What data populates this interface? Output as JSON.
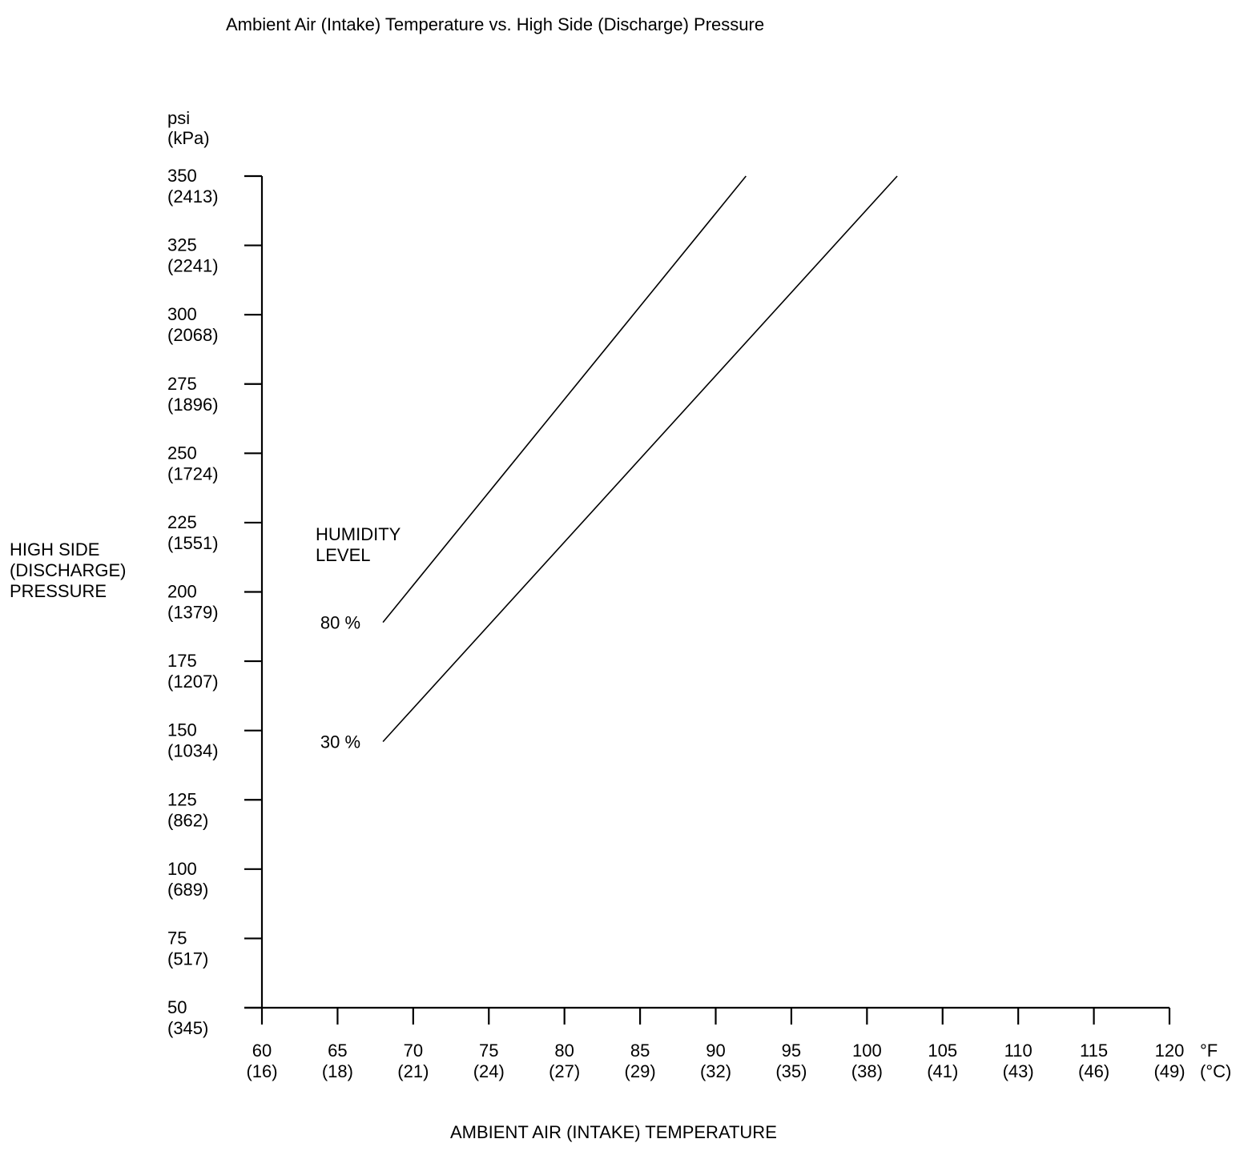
{
  "chart_data": {
    "type": "line",
    "title": "Ambient Air (Intake) Temperature vs. High Side (Discharge) Pressure",
    "xlabel": "AMBIENT AIR (INTAKE) TEMPERATURE",
    "ylabel_lines": [
      "HIGH SIDE",
      "(DISCHARGE)",
      "PRESSURE"
    ],
    "y_unit_lines": [
      "psi",
      "(kPa)"
    ],
    "x_unit_lines": [
      "°F",
      "(°C)"
    ],
    "xlim": [
      60,
      120
    ],
    "ylim": [
      50,
      350
    ],
    "x_ticks": [
      {
        "value": 60,
        "label": "60",
        "sublabel": "(16)"
      },
      {
        "value": 65,
        "label": "65",
        "sublabel": "(18)"
      },
      {
        "value": 70,
        "label": "70",
        "sublabel": "(21)"
      },
      {
        "value": 75,
        "label": "75",
        "sublabel": "(24)"
      },
      {
        "value": 80,
        "label": "80",
        "sublabel": "(27)"
      },
      {
        "value": 85,
        "label": "85",
        "sublabel": "(29)"
      },
      {
        "value": 90,
        "label": "90",
        "sublabel": "(32)"
      },
      {
        "value": 95,
        "label": "95",
        "sublabel": "(35)"
      },
      {
        "value": 100,
        "label": "100",
        "sublabel": "(38)"
      },
      {
        "value": 105,
        "label": "105",
        "sublabel": "(41)"
      },
      {
        "value": 110,
        "label": "110",
        "sublabel": "(43)"
      },
      {
        "value": 115,
        "label": "115",
        "sublabel": "(46)"
      },
      {
        "value": 120,
        "label": "120",
        "sublabel": "(49)"
      }
    ],
    "y_ticks": [
      {
        "value": 350,
        "label": "350",
        "sublabel": "(2413)"
      },
      {
        "value": 325,
        "label": "325",
        "sublabel": "(2241)"
      },
      {
        "value": 300,
        "label": "300",
        "sublabel": "(2068)"
      },
      {
        "value": 275,
        "label": "275",
        "sublabel": "(1896)"
      },
      {
        "value": 250,
        "label": "250",
        "sublabel": "(1724)"
      },
      {
        "value": 225,
        "label": "225",
        "sublabel": "(1551)"
      },
      {
        "value": 200,
        "label": "200",
        "sublabel": "(1379)"
      },
      {
        "value": 175,
        "label": "175",
        "sublabel": "(1207)"
      },
      {
        "value": 150,
        "label": "150",
        "sublabel": "(1034)"
      },
      {
        "value": 125,
        "label": "125",
        "sublabel": "(862)"
      },
      {
        "value": 100,
        "label": "100",
        "sublabel": "(689)"
      },
      {
        "value": 75,
        "label": "75",
        "sublabel": "(517)"
      },
      {
        "value": 50,
        "label": "50",
        "sublabel": "(345)"
      }
    ],
    "annotation_lines": [
      "HUMIDITY",
      "LEVEL"
    ],
    "series": [
      {
        "name": "80 %",
        "x": [
          68,
          92
        ],
        "y": [
          189,
          350
        ]
      },
      {
        "name": "30 %",
        "x": [
          68,
          102
        ],
        "y": [
          146,
          350
        ]
      }
    ],
    "grid": false,
    "legend": "inline at series start"
  }
}
